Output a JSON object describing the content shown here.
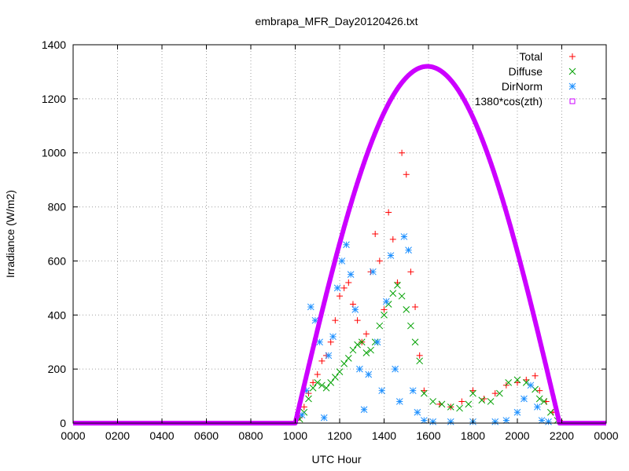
{
  "chart_data": {
    "type": "scatter",
    "title": "embrapa_MFR_Day20120426.txt",
    "xlabel": "UTC Hour",
    "ylabel": "Irradiance (W/m2)",
    "xlim": [
      0,
      24
    ],
    "ylim": [
      0,
      1400
    ],
    "grid": true,
    "legend_position": "top-right",
    "x_ticks": [
      {
        "value": 0,
        "label": "0000"
      },
      {
        "value": 2,
        "label": "0200"
      },
      {
        "value": 4,
        "label": "0400"
      },
      {
        "value": 6,
        "label": "0600"
      },
      {
        "value": 8,
        "label": "0800"
      },
      {
        "value": 10,
        "label": "1000"
      },
      {
        "value": 12,
        "label": "1200"
      },
      {
        "value": 14,
        "label": "1400"
      },
      {
        "value": 16,
        "label": "1600"
      },
      {
        "value": 18,
        "label": "1800"
      },
      {
        "value": 20,
        "label": "2000"
      },
      {
        "value": 22,
        "label": "2200"
      },
      {
        "value": 24,
        "label": "0000"
      }
    ],
    "y_ticks": [
      {
        "value": 0,
        "label": "0"
      },
      {
        "value": 200,
        "label": "200"
      },
      {
        "value": 400,
        "label": "400"
      },
      {
        "value": 600,
        "label": "600"
      },
      {
        "value": 800,
        "label": "800"
      },
      {
        "value": 1000,
        "label": "1000"
      },
      {
        "value": 1200,
        "label": "1200"
      },
      {
        "value": 1400,
        "label": "1400"
      }
    ],
    "series": [
      {
        "name": "Total",
        "marker": "plus",
        "color": "#ff0000",
        "points": [
          [
            10.2,
            20
          ],
          [
            10.4,
            60
          ],
          [
            10.6,
            110
          ],
          [
            10.8,
            150
          ],
          [
            11.0,
            180
          ],
          [
            11.2,
            230
          ],
          [
            11.4,
            250
          ],
          [
            11.6,
            300
          ],
          [
            11.8,
            380
          ],
          [
            12.0,
            470
          ],
          [
            12.2,
            500
          ],
          [
            12.4,
            520
          ],
          [
            12.6,
            440
          ],
          [
            12.8,
            380
          ],
          [
            13.0,
            300
          ],
          [
            13.2,
            330
          ],
          [
            13.4,
            560
          ],
          [
            13.6,
            700
          ],
          [
            13.8,
            600
          ],
          [
            14.0,
            420
          ],
          [
            14.2,
            780
          ],
          [
            14.4,
            680
          ],
          [
            14.6,
            520
          ],
          [
            14.8,
            1000
          ],
          [
            15.0,
            920
          ],
          [
            15.2,
            560
          ],
          [
            15.4,
            430
          ],
          [
            15.6,
            250
          ],
          [
            15.8,
            120
          ],
          [
            16.5,
            70
          ],
          [
            17.0,
            60
          ],
          [
            17.5,
            80
          ],
          [
            18.0,
            120
          ],
          [
            18.5,
            90
          ],
          [
            19.0,
            110
          ],
          [
            19.5,
            140
          ],
          [
            20.0,
            150
          ],
          [
            20.4,
            160
          ],
          [
            20.8,
            175
          ],
          [
            21.0,
            120
          ],
          [
            21.3,
            80
          ],
          [
            21.6,
            40
          ],
          [
            21.9,
            10
          ]
        ]
      },
      {
        "name": "Diffuse",
        "marker": "cross",
        "color": "#00a000",
        "points": [
          [
            10.2,
            15
          ],
          [
            10.4,
            40
          ],
          [
            10.6,
            90
          ],
          [
            10.8,
            130
          ],
          [
            11.0,
            150
          ],
          [
            11.2,
            140
          ],
          [
            11.4,
            130
          ],
          [
            11.6,
            150
          ],
          [
            11.8,
            170
          ],
          [
            12.0,
            190
          ],
          [
            12.2,
            220
          ],
          [
            12.4,
            240
          ],
          [
            12.6,
            270
          ],
          [
            12.8,
            290
          ],
          [
            13.0,
            300
          ],
          [
            13.2,
            260
          ],
          [
            13.4,
            270
          ],
          [
            13.6,
            300
          ],
          [
            13.8,
            360
          ],
          [
            14.0,
            400
          ],
          [
            14.2,
            440
          ],
          [
            14.4,
            480
          ],
          [
            14.6,
            510
          ],
          [
            14.8,
            470
          ],
          [
            15.0,
            420
          ],
          [
            15.2,
            360
          ],
          [
            15.4,
            300
          ],
          [
            15.6,
            230
          ],
          [
            15.8,
            110
          ],
          [
            16.2,
            80
          ],
          [
            16.6,
            70
          ],
          [
            17.0,
            60
          ],
          [
            17.4,
            55
          ],
          [
            17.8,
            70
          ],
          [
            18.0,
            110
          ],
          [
            18.4,
            85
          ],
          [
            18.8,
            80
          ],
          [
            19.2,
            110
          ],
          [
            19.6,
            150
          ],
          [
            20.0,
            160
          ],
          [
            20.4,
            150
          ],
          [
            20.8,
            125
          ],
          [
            21.0,
            90
          ],
          [
            21.2,
            80
          ],
          [
            21.5,
            40
          ],
          [
            21.8,
            10
          ]
        ]
      },
      {
        "name": "DirNorm",
        "marker": "star",
        "color": "#1e90ff",
        "points": [
          [
            10.3,
            30
          ],
          [
            10.5,
            120
          ],
          [
            10.7,
            430
          ],
          [
            10.9,
            380
          ],
          [
            11.1,
            300
          ],
          [
            11.3,
            20
          ],
          [
            11.5,
            250
          ],
          [
            11.7,
            320
          ],
          [
            11.9,
            500
          ],
          [
            12.1,
            600
          ],
          [
            12.3,
            660
          ],
          [
            12.5,
            550
          ],
          [
            12.7,
            420
          ],
          [
            12.9,
            200
          ],
          [
            13.1,
            50
          ],
          [
            13.3,
            180
          ],
          [
            13.5,
            560
          ],
          [
            13.7,
            300
          ],
          [
            13.9,
            120
          ],
          [
            14.1,
            450
          ],
          [
            14.3,
            620
          ],
          [
            14.5,
            200
          ],
          [
            14.7,
            80
          ],
          [
            14.9,
            690
          ],
          [
            15.1,
            640
          ],
          [
            15.3,
            120
          ],
          [
            15.5,
            40
          ],
          [
            15.8,
            10
          ],
          [
            16.2,
            5
          ],
          [
            17.0,
            5
          ],
          [
            18.0,
            5
          ],
          [
            19.0,
            5
          ],
          [
            19.5,
            10
          ],
          [
            20.0,
            40
          ],
          [
            20.3,
            90
          ],
          [
            20.6,
            140
          ],
          [
            20.9,
            60
          ],
          [
            21.1,
            10
          ],
          [
            21.4,
            5
          ]
        ]
      },
      {
        "name": "1380*cos(zth)",
        "marker": "square",
        "color": "#cc00ff",
        "curve": {
          "peak": 1320,
          "center": 15.95,
          "start": 10.0,
          "end": 21.9
        }
      }
    ]
  }
}
